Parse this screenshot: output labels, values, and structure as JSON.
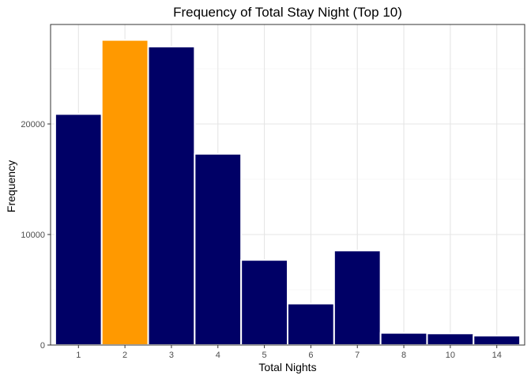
{
  "chart_data": {
    "type": "bar",
    "title": "Frequency of Total Stay Night (Top 10)",
    "xlabel": "Total Nights",
    "ylabel": "Frequency",
    "categories": [
      "1",
      "2",
      "3",
      "4",
      "5",
      "6",
      "7",
      "8",
      "10",
      "14"
    ],
    "values": [
      20900,
      27600,
      27000,
      17300,
      7700,
      3750,
      8550,
      1100,
      1050,
      850
    ],
    "highlight_index": 1,
    "bar_color": "#000066",
    "highlight_color": "#FF9900",
    "ylim": [
      0,
      29000
    ],
    "yticks": [
      0,
      10000,
      20000
    ],
    "ytick_labels": [
      "0",
      "10000",
      "20000"
    ],
    "yticks_minor": [
      5000,
      15000,
      25000
    ],
    "grid": true,
    "legend": "none"
  }
}
